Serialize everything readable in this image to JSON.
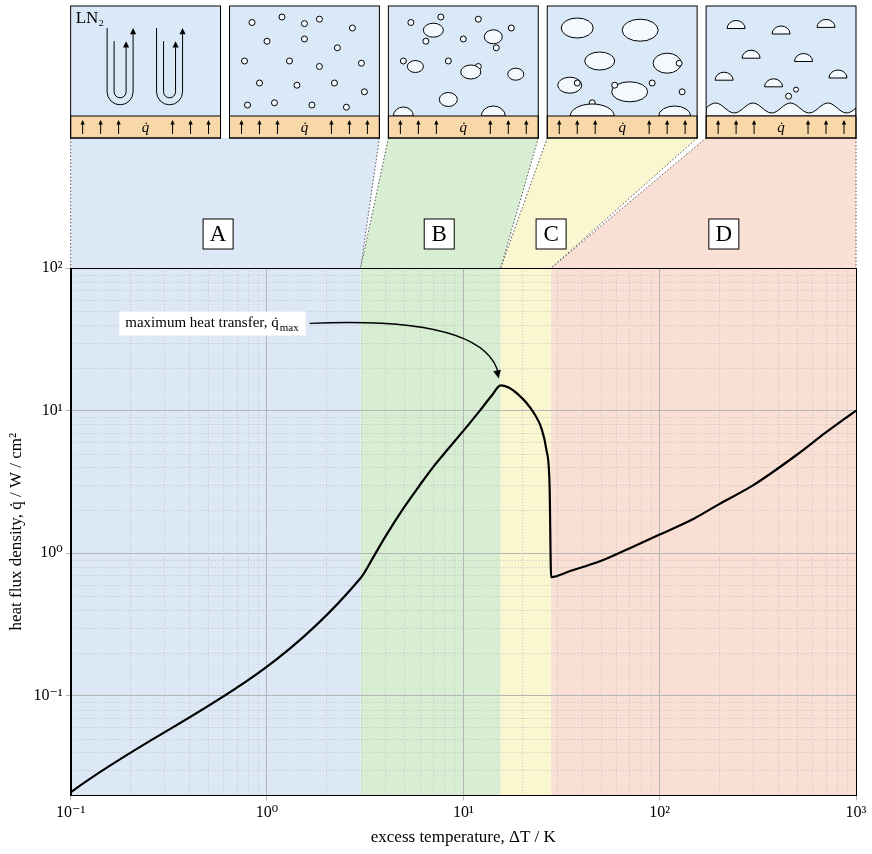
{
  "chart_data": {
    "type": "line",
    "x_label": "excess temperature, ΔT / K",
    "y_label": "heat flux density, q̇ / W / cm²",
    "log": true,
    "grid": true,
    "color": "#000000",
    "x": [
      0.1,
      3,
      3.5,
      4,
      5,
      6,
      7,
      8,
      10,
      12,
      14,
      15.5,
      17,
      19,
      21,
      23,
      25,
      26.5,
      27.5,
      28,
      35,
      50,
      70,
      100,
      150,
      200,
      300,
      500,
      700,
      1000
    ],
    "values": [
      0.021,
      0.67,
      0.95,
      1.3,
      2.1,
      3.0,
      4.0,
      5.0,
      7.2,
      9.8,
      12.8,
      15,
      14.5,
      13,
      11.3,
      9.5,
      7.5,
      5.3,
      3.0,
      0.68,
      0.75,
      0.88,
      1.08,
      1.35,
      1.75,
      2.2,
      3.0,
      4.9,
      7.0,
      10
    ],
    "xlim": [
      0.1,
      1000
    ],
    "ylim": [
      0.02,
      100
    ],
    "xticks": [
      {
        "value": 0.1,
        "label": "10⁻¹"
      },
      {
        "value": 1,
        "label": "10⁰"
      },
      {
        "value": 10,
        "label": "10¹"
      },
      {
        "value": 100,
        "label": "10²"
      },
      {
        "value": 1000,
        "label": "10³"
      }
    ],
    "yticks": [
      {
        "value": 0.1,
        "label": "10⁻¹"
      },
      {
        "value": 1,
        "label": "10⁰"
      },
      {
        "value": 10,
        "label": "10¹"
      },
      {
        "value": 100,
        "label": "10²"
      }
    ],
    "regions": [
      {
        "label": "A",
        "from": 0.1,
        "to": 3,
        "color": "#dce8f5"
      },
      {
        "label": "B",
        "from": 3,
        "to": 15.5,
        "color": "#d7eed3"
      },
      {
        "label": "C",
        "from": 15.5,
        "to": 28,
        "color": "#faf6cf"
      },
      {
        "label": "D",
        "from": 28,
        "to": 1000,
        "color": "#fadfd5"
      }
    ],
    "annotations": [
      {
        "text": "maximum heat transfer, q̇",
        "subscript": "max",
        "x": 15.5,
        "y": 15
      }
    ],
    "illustration": {
      "fluid": "LN₂",
      "heater": "q̇"
    }
  }
}
